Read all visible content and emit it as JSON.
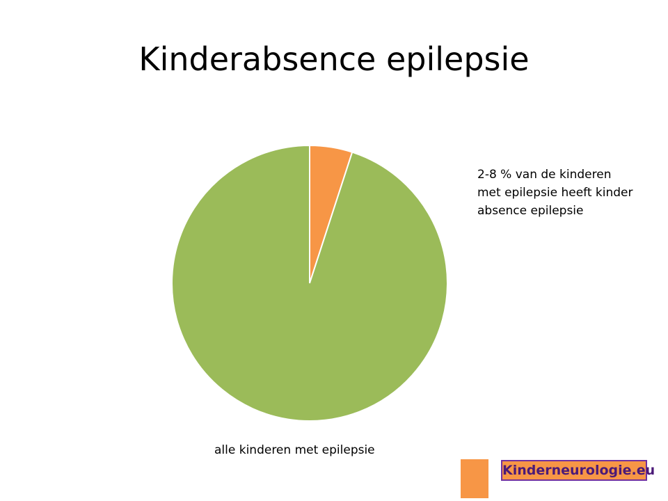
{
  "chart_data": {
    "type": "pie",
    "title": "Kinderabsence epilepsie",
    "categories": [
      "2-8 % van de kinderen met epilepsie heeft kinder absence epilepsie",
      "alle kinderen met epilepsie"
    ],
    "values": [
      5,
      95
    ],
    "colors": [
      "#f79646",
      "#9bbb59"
    ]
  },
  "logo": {
    "text": "Kinderneurologie.eu"
  }
}
